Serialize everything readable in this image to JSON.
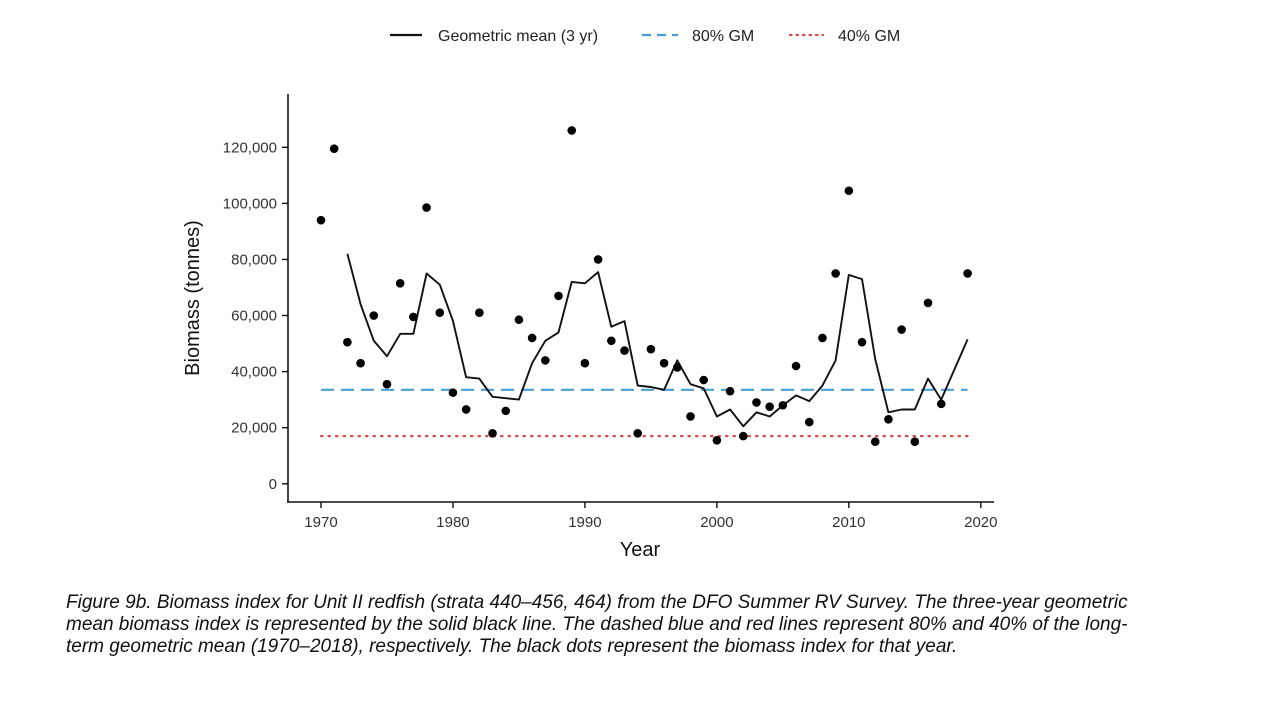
{
  "chart_data": {
    "type": "line",
    "title": "",
    "xlabel": "Year",
    "ylabel": "Biomass (tonnes)",
    "xlim": [
      1967.5,
      2021
    ],
    "ylim": [
      -6500,
      139000
    ],
    "x_ticks": [
      1970,
      1980,
      1990,
      2000,
      2010,
      2020
    ],
    "x_tick_labels": [
      "1970",
      "1980",
      "1990",
      "2000",
      "2010",
      "2020"
    ],
    "y_ticks": [
      0,
      20000,
      40000,
      60000,
      80000,
      100000,
      120000
    ],
    "y_tick_labels": [
      "0",
      "20,000",
      "40,000",
      "60,000",
      "80,000",
      "100,000",
      "120,000"
    ],
    "grid": false,
    "legend_position": "top",
    "legend": [
      {
        "label": "Geometric mean (3 yr)",
        "style": "solid",
        "color": "#111111"
      },
      {
        "label": "80% GM",
        "style": "dashed",
        "color": "#4a9fd8"
      },
      {
        "label": "40% GM",
        "style": "dotted",
        "color": "#d94a4a"
      }
    ],
    "series": [
      {
        "label": "Geometric mean (3 yr)",
        "kind": "line",
        "color": "#111111",
        "x": [
          1972,
          1973,
          1974,
          1975,
          1976,
          1977,
          1978,
          1979,
          1980,
          1981,
          1982,
          1983,
          1984,
          1985,
          1986,
          1987,
          1988,
          1989,
          1990,
          1991,
          1992,
          1993,
          1994,
          1995,
          1996,
          1997,
          1998,
          1999,
          2000,
          2001,
          2002,
          2003,
          2004,
          2005,
          2006,
          2007,
          2008,
          2009,
          2010,
          2011,
          2012,
          2013,
          2014,
          2015,
          2016,
          2017,
          2019
        ],
        "y": [
          82000,
          64000,
          51000,
          45500,
          53500,
          53500,
          75000,
          71000,
          58000,
          38000,
          37500,
          31000,
          30500,
          30000,
          43000,
          51000,
          54000,
          72000,
          71500,
          75500,
          56000,
          58000,
          35000,
          34500,
          33500,
          44000,
          35500,
          34000,
          24000,
          26500,
          20500,
          25500,
          24000,
          28000,
          31500,
          29500,
          35000,
          44000,
          74500,
          73000,
          44500,
          25500,
          26500,
          26500,
          37500,
          30000,
          51500
        ]
      },
      {
        "label": "Biomass index",
        "kind": "scatter",
        "color": "#000000",
        "x": [
          1970,
          1971,
          1972,
          1973,
          1974,
          1975,
          1976,
          1977,
          1978,
          1979,
          1980,
          1981,
          1982,
          1983,
          1984,
          1985,
          1986,
          1987,
          1988,
          1989,
          1990,
          1991,
          1992,
          1993,
          1994,
          1995,
          1996,
          1997,
          1998,
          1999,
          2000,
          2001,
          2002,
          2003,
          2004,
          2005,
          2006,
          2007,
          2008,
          2009,
          2010,
          2011,
          2012,
          2013,
          2014,
          2015,
          2016,
          2017,
          2019
        ],
        "y": [
          94000,
          119500,
          50500,
          43000,
          60000,
          35500,
          71500,
          59500,
          98500,
          61000,
          32500,
          26500,
          61000,
          18000,
          26000,
          58500,
          52000,
          44000,
          67000,
          126000,
          43000,
          80000,
          51000,
          47500,
          18000,
          48000,
          43000,
          41500,
          24000,
          37000,
          15500,
          33000,
          17000,
          29000,
          27500,
          28000,
          42000,
          22000,
          52000,
          75000,
          104500,
          50500,
          15000,
          23000,
          55000,
          15000,
          64500,
          28500,
          75000
        ]
      },
      {
        "label": "80% GM",
        "kind": "reference",
        "style": "dashed",
        "color": "#4a9fd8",
        "x": [
          1970,
          2019
        ],
        "y": [
          33500,
          33500
        ]
      },
      {
        "label": "40% GM",
        "kind": "reference",
        "style": "dotted",
        "color": "#d94a4a",
        "x": [
          1970,
          2019
        ],
        "y": [
          17000,
          17000
        ]
      }
    ]
  },
  "caption": "Figure 9b. Biomass index for Unit II redfish (strata 440–456, 464) from the DFO Summer RV Survey.  The three-year geometric mean biomass index is represented by the solid black line. The dashed blue and red lines represent 80% and 40% of the long-term geometric mean (1970–2018), respectively. The black dots represent the biomass index for that year."
}
